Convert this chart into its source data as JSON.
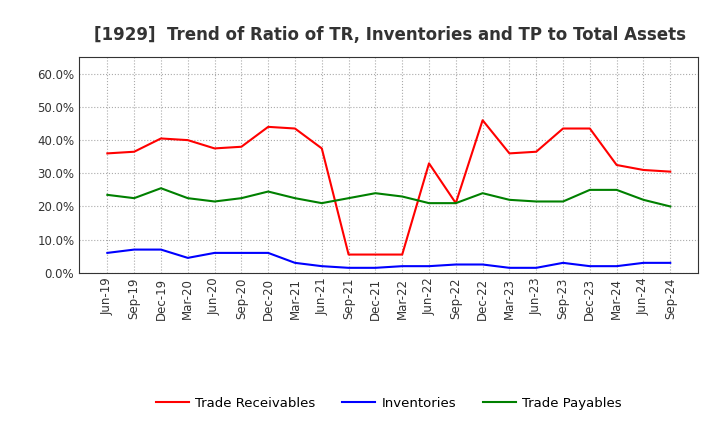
{
  "title": "[1929]  Trend of Ratio of TR, Inventories and TP to Total Assets",
  "x_labels": [
    "Jun-19",
    "Sep-19",
    "Dec-19",
    "Mar-20",
    "Jun-20",
    "Sep-20",
    "Dec-20",
    "Mar-21",
    "Jun-21",
    "Sep-21",
    "Dec-21",
    "Mar-22",
    "Jun-22",
    "Sep-22",
    "Dec-22",
    "Mar-23",
    "Jun-23",
    "Sep-23",
    "Dec-23",
    "Mar-24",
    "Jun-24",
    "Sep-24"
  ],
  "trade_receivables": [
    36.0,
    36.5,
    40.5,
    40.0,
    37.5,
    38.0,
    44.0,
    43.5,
    37.5,
    5.5,
    5.5,
    5.5,
    33.0,
    21.0,
    46.0,
    36.0,
    36.5,
    43.5,
    43.5,
    32.5,
    31.0,
    30.5
  ],
  "inventories": [
    6.0,
    7.0,
    7.0,
    4.5,
    6.0,
    6.0,
    6.0,
    3.0,
    2.0,
    1.5,
    1.5,
    2.0,
    2.0,
    2.5,
    2.5,
    1.5,
    1.5,
    3.0,
    2.0,
    2.0,
    3.0,
    3.0
  ],
  "trade_payables": [
    23.5,
    22.5,
    25.5,
    22.5,
    21.5,
    22.5,
    24.5,
    22.5,
    21.0,
    22.5,
    24.0,
    23.0,
    21.0,
    21.0,
    24.0,
    22.0,
    21.5,
    21.5,
    25.0,
    25.0,
    22.0,
    20.0
  ],
  "tr_color": "#FF0000",
  "inv_color": "#0000FF",
  "tp_color": "#008000",
  "bg_color": "#FFFFFF",
  "plot_bg_color": "#FFFFFF",
  "grid_color": "#AAAAAA",
  "ylim": [
    0,
    65
  ],
  "yticks": [
    0.0,
    10.0,
    20.0,
    30.0,
    40.0,
    50.0,
    60.0
  ],
  "legend_labels": [
    "Trade Receivables",
    "Inventories",
    "Trade Payables"
  ],
  "title_fontsize": 12,
  "axis_fontsize": 8.5,
  "legend_fontsize": 9.5
}
